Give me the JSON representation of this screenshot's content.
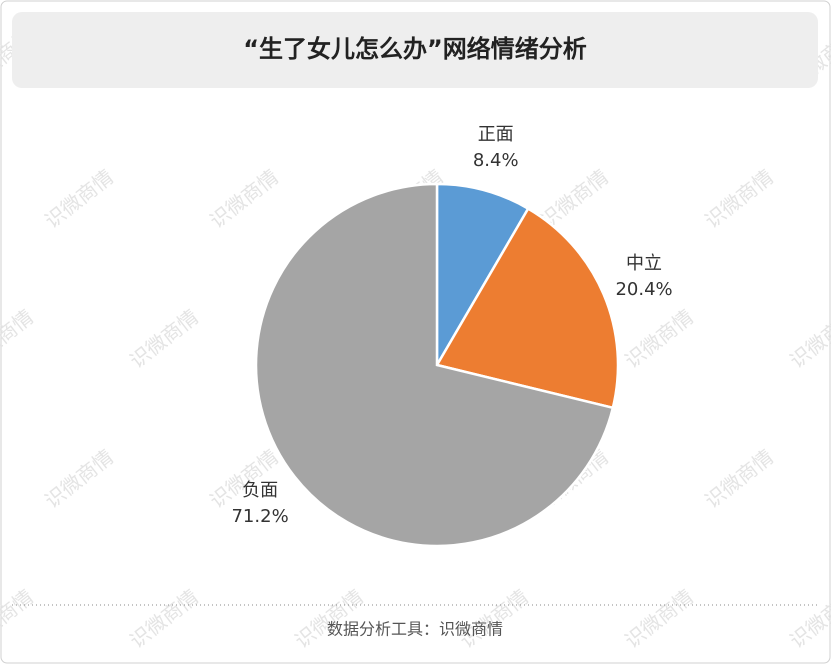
{
  "chart_data": {
    "type": "pie",
    "title": "“生了女儿怎么办”网络情绪分析",
    "categories": [
      "正面",
      "中立",
      "负面"
    ],
    "values": [
      8.4,
      20.4,
      71.2
    ],
    "value_labels": [
      "8.4%",
      "20.4%",
      "71.2%"
    ],
    "colors": [
      "#5b9bd5",
      "#ed7d31",
      "#a5a5a5"
    ],
    "footer": "数据分析工具：识微商情",
    "watermark": "识微商情"
  }
}
